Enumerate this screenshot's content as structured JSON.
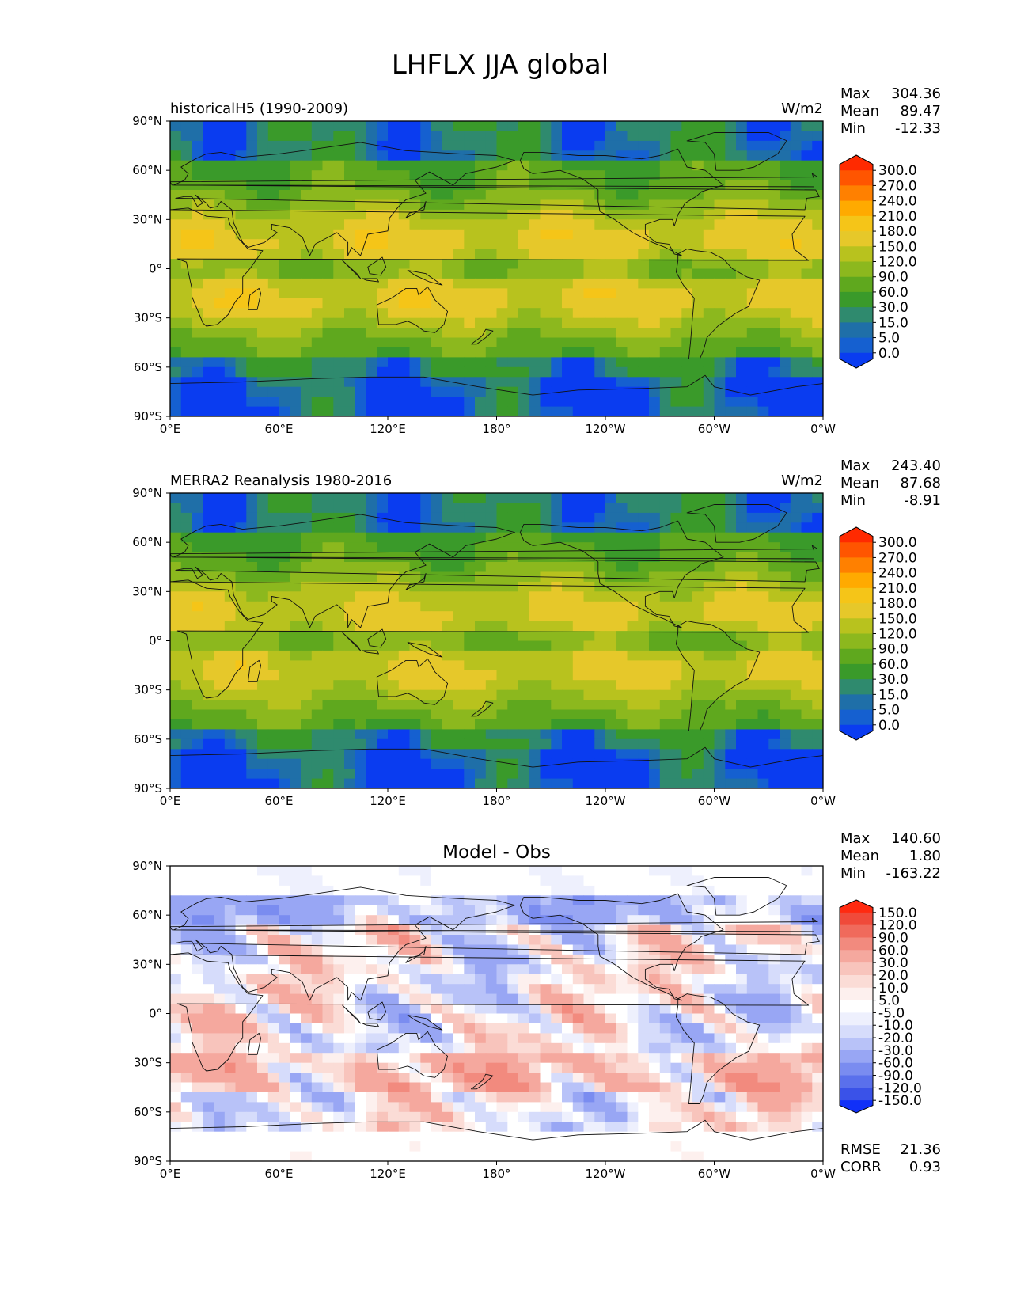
{
  "figure_title": "LHFLX JJA global",
  "chart_data": [
    {
      "type": "heatmap",
      "title_left": "historicalH5 (1990-2009)",
      "title_center": "",
      "units": "W/m2",
      "x_ticks": [
        "0°E",
        "60°E",
        "120°E",
        "180°",
        "120°W",
        "60°W",
        "0°W"
      ],
      "y_ticks": [
        "90°N",
        "60°N",
        "30°N",
        "0°",
        "30°S",
        "60°S",
        "90°S"
      ],
      "stats": [
        {
          "label": "Max",
          "value": "304.36"
        },
        {
          "label": "Mean",
          "value": "89.47"
        },
        {
          "label": "Min",
          "value": "-12.33"
        }
      ],
      "colorbar_labels": [
        "300.0",
        "270.0",
        "240.0",
        "210.0",
        "180.0",
        "150.0",
        "120.0",
        "90.0",
        "60.0",
        "30.0",
        "15.0",
        "5.0",
        "0.0"
      ],
      "colorbar_colors": [
        "#ff2a00",
        "#ff5500",
        "#ff8000",
        "#ffaa00",
        "#f5c518",
        "#e6c82a",
        "#b8c21e",
        "#8cb81e",
        "#5fa81e",
        "#3a9a2a",
        "#2f8a6e",
        "#1f6fa8",
        "#1560d0",
        "#0a3cf0"
      ],
      "field": "historical",
      "metrics": []
    },
    {
      "type": "heatmap",
      "title_left": "MERRA2 Reanalysis 1980-2016",
      "title_center": "",
      "units": "W/m2",
      "x_ticks": [
        "0°E",
        "60°E",
        "120°E",
        "180°",
        "120°W",
        "60°W",
        "0°W"
      ],
      "y_ticks": [
        "90°N",
        "60°N",
        "30°N",
        "0°",
        "30°S",
        "60°S",
        "90°S"
      ],
      "stats": [
        {
          "label": "Max",
          "value": "243.40"
        },
        {
          "label": "Mean",
          "value": "87.68"
        },
        {
          "label": "Min",
          "value": "-8.91"
        }
      ],
      "colorbar_labels": [
        "300.0",
        "270.0",
        "240.0",
        "210.0",
        "180.0",
        "150.0",
        "120.0",
        "90.0",
        "60.0",
        "30.0",
        "15.0",
        "5.0",
        "0.0"
      ],
      "colorbar_colors": [
        "#ff2a00",
        "#ff5500",
        "#ff8000",
        "#ffaa00",
        "#f5c518",
        "#e6c82a",
        "#b8c21e",
        "#8cb81e",
        "#5fa81e",
        "#3a9a2a",
        "#2f8a6e",
        "#1f6fa8",
        "#1560d0",
        "#0a3cf0"
      ],
      "field": "obs",
      "metrics": []
    },
    {
      "type": "heatmap",
      "title_left": "",
      "title_center": "Model - Obs",
      "units": "",
      "x_ticks": [
        "0°E",
        "60°E",
        "120°E",
        "180°",
        "120°W",
        "60°W",
        "0°W"
      ],
      "y_ticks": [
        "90°N",
        "60°N",
        "30°N",
        "0°",
        "30°S",
        "60°S",
        "90°S"
      ],
      "stats": [
        {
          "label": "Max",
          "value": "140.60"
        },
        {
          "label": "Mean",
          "value": "1.80"
        },
        {
          "label": "Min",
          "value": "-163.22"
        }
      ],
      "colorbar_labels": [
        "150.0",
        "120.0",
        "90.0",
        "60.0",
        "30.0",
        "20.0",
        "10.0",
        "5.0",
        "-5.0",
        "-10.0",
        "-20.0",
        "-30.0",
        "-60.0",
        "-90.0",
        "-120.0",
        "-150.0"
      ],
      "colorbar_colors": [
        "#ff2a10",
        "#f04a3a",
        "#f06a5c",
        "#f28a7e",
        "#f5a89e",
        "#f8c4bc",
        "#fbdcd6",
        "#fdf0ee",
        "#ffffff",
        "#eef0fd",
        "#d6dcfb",
        "#b8c2f8",
        "#98a6f4",
        "#7a8cf0",
        "#5a70ec",
        "#3a52e8",
        "#1030f8"
      ],
      "field": "diff",
      "metrics": [
        {
          "label": "RMSE",
          "value": "21.36"
        },
        {
          "label": "CORR",
          "value": "0.93"
        }
      ]
    }
  ]
}
